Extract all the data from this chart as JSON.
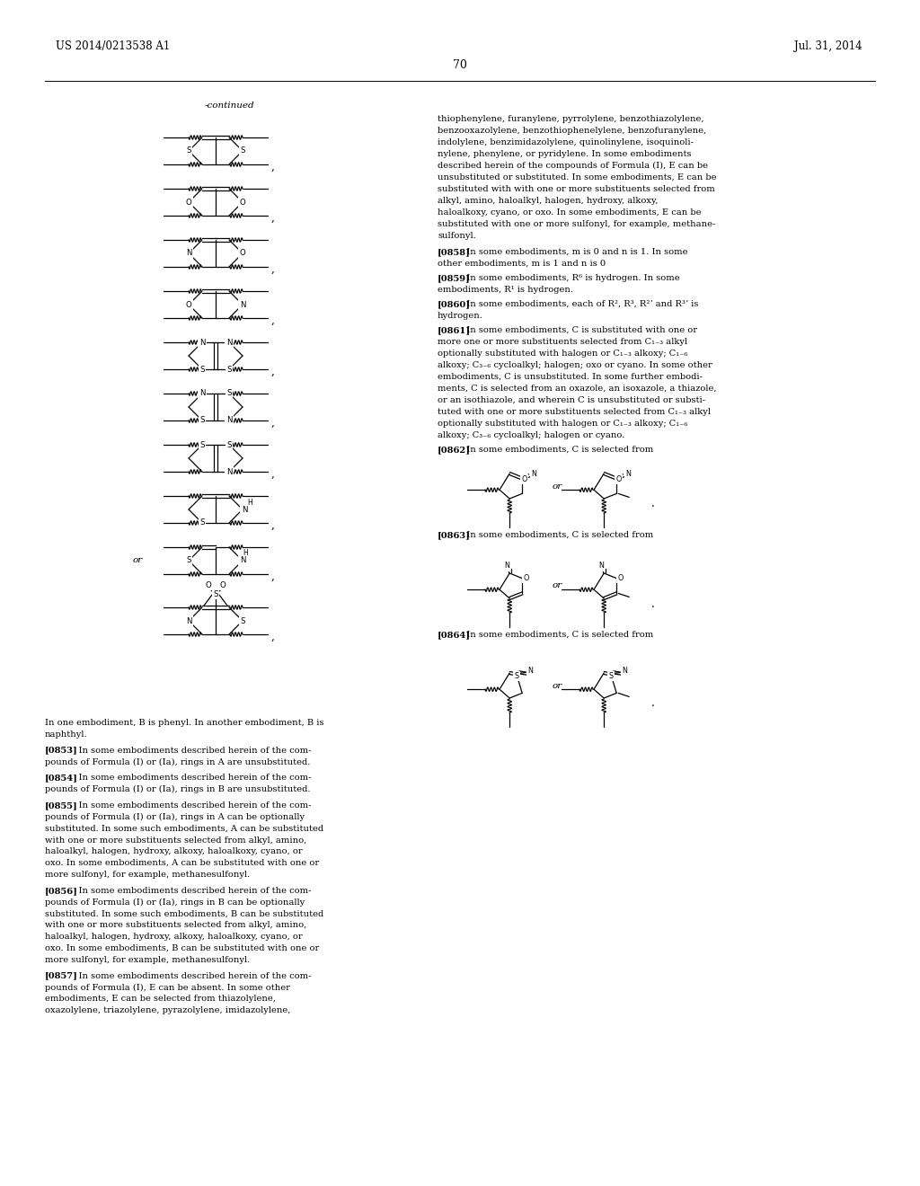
{
  "bg": "#ffffff",
  "patent_num": "US 2014/0213538 A1",
  "patent_date": "Jul. 31, 2014",
  "page_num": "70",
  "continued": "-continued",
  "right_para_lines": [
    "thiophenylene, furanylene, pyrrolylene, benzothiazolylene,",
    "benzooxazolylene, benzothiophenelylene, benzofuranylene,",
    "indolylene, benzimidazolylene, quinolinylene, isoquinoli-",
    "nylene, phenylene, or pyridylene. In some embodiments",
    "described herein of the compounds of Formula (I), E can be",
    "unsubstituted or substituted. In some embodiments, E can be",
    "substituted with with one or more substituents selected from",
    "alkyl, amino, haloalkyl, halogen, hydroxy, alkoxy,",
    "haloalkoxy, cyano, or oxo. In some embodiments, E can be",
    "substituted with one or more sulfonyl, for example, methane-",
    "sulfonyl."
  ],
  "para_858": [
    "[0858]",
    "  In some embodiments, m is 0 and n is 1. In some",
    "other embodiments, m is 1 and n is 0"
  ],
  "para_859": [
    "[0859]",
    "  In some embodiments, R⁶ is hydrogen. In some",
    "embodiments, R¹ is hydrogen."
  ],
  "para_860": [
    "[0860]",
    "  In some embodiments, each of R², R³, R²ʼ and R³ʼ is",
    "hydrogen."
  ],
  "para_861": [
    "[0861]",
    "  In some embodiments, C is substituted with one or",
    "more one or more substituents selected from C₁₋₃ alkyl",
    "optionally substituted with halogen or C₁₋₃ alkoxy; C₁₋₆",
    "alkoxy; C₃₋₆ cycloalkyl; halogen; oxo or cyano. In some other",
    "embodiments, C is unsubstituted. In some further embodi-",
    "ments, C is selected from an oxazole, an isoxazole, a thiazole,",
    "or an isothiazole, and wherein C is unsubstituted or substi-",
    "tuted with one or more substituents selected from C₁₋₃ alkyl",
    "optionally substituted with halogen or C₁₋₃ alkoxy; C₁₋₆",
    "alkoxy; C₃₋₆ cycloalkyl; halogen or cyano."
  ],
  "para_862": [
    "[0862]",
    "  In some embodiments, C is selected from"
  ],
  "para_863": [
    "[0863]",
    "  In some embodiments, C is selected from"
  ],
  "para_864": [
    "[0864]",
    "  In some embodiments, C is selected from"
  ],
  "left_bottom_lines": [
    "In one embodiment, B is phenyl. In another embodiment, B is",
    "naphthyl.",
    "",
    "[0853]    In some embodiments described herein of the com-",
    "pounds of Formula (I) or (Ia), rings in A are unsubstituted.",
    "",
    "[0854]    In some embodiments described herein of the com-",
    "pounds of Formula (I) or (Ia), rings in B are unsubstituted.",
    "",
    "[0855]    In some embodiments described herein of the com-",
    "pounds of Formula (I) or (Ia), rings in A can be optionally",
    "substituted. In some such embodiments, A can be substituted",
    "with one or more substituents selected from alkyl, amino,",
    "haloalkyl, halogen, hydroxy, alkoxy, haloalkoxy, cyano, or",
    "oxo. In some embodiments, A can be substituted with one or",
    "more sulfonyl, for example, methanesulfonyl.",
    "",
    "[0856]    In some embodiments described herein of the com-",
    "pounds of Formula (I) or (Ia), rings in B can be optionally",
    "substituted. In some such embodiments, B can be substituted",
    "with one or more substituents selected from alkyl, amino,",
    "haloalkyl, halogen, hydroxy, alkoxy, haloalkoxy, cyano, or",
    "oxo. In some embodiments, B can be substituted with one or",
    "more sulfonyl, for example, methanesulfonyl.",
    "",
    "[0857]    In some embodiments described herein of the com-",
    "pounds of Formula (I), E can be absent. In some other",
    "embodiments, E can be selected from thiazolylene,",
    "oxazolylene, triazolylene, pyrazolylene, imidazolylene,"
  ]
}
